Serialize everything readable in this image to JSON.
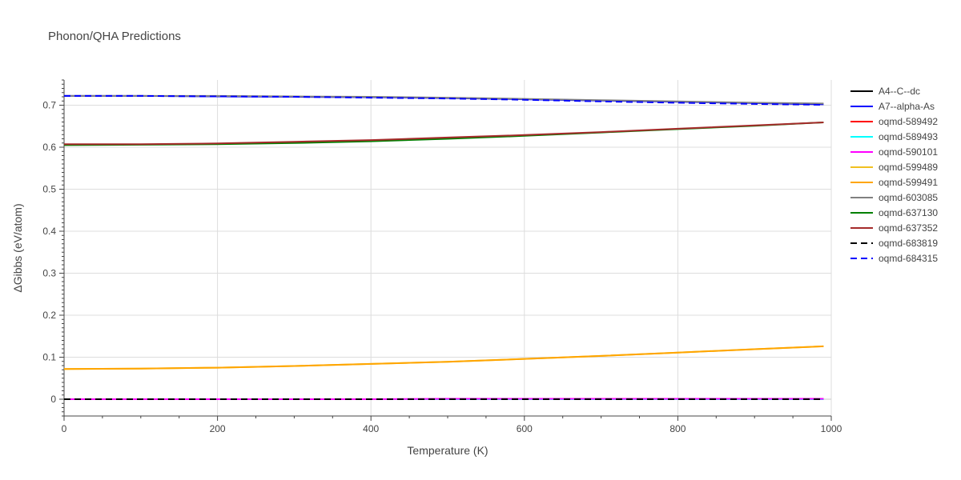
{
  "chart_data": {
    "type": "line",
    "title": "Phonon/QHA Predictions",
    "xlabel": "Temperature (K)",
    "ylabel": "ΔGibbs (eV/atom)",
    "xlim": [
      0,
      1000
    ],
    "ylim": [
      -0.04,
      0.76
    ],
    "xticks": [
      0,
      200,
      400,
      600,
      800,
      1000
    ],
    "yticks": [
      0,
      0.1,
      0.2,
      0.3,
      0.4,
      0.5,
      0.6,
      0.7
    ],
    "ytick_labels": [
      "0",
      "0.1",
      "0.2",
      "0.3",
      "0.4",
      "0.5",
      "0.6",
      "0.7"
    ],
    "grid": true,
    "legend_position": "right",
    "x": [
      0,
      100,
      200,
      300,
      400,
      500,
      600,
      700,
      800,
      900,
      990
    ],
    "series": [
      {
        "name": "A4--C--dc",
        "color": "#000000",
        "dash": "solid",
        "values": [
          0.0,
          0.0,
          0.0,
          0.0,
          0.0,
          0.0,
          0.0,
          0.0,
          0.0,
          0.0,
          0.0
        ]
      },
      {
        "name": "A7--alpha-As",
        "color": "#0000ff",
        "dash": "solid",
        "values": [
          0.722,
          0.722,
          0.721,
          0.72,
          0.719,
          0.717,
          0.714,
          0.711,
          0.708,
          0.705,
          0.702
        ]
      },
      {
        "name": "oqmd-589492",
        "color": "#ff0000",
        "dash": "solid",
        "values": [
          0.0,
          0.0,
          0.0,
          0.0,
          0.0,
          0.0,
          0.001,
          0.001,
          0.001,
          0.001,
          0.001
        ]
      },
      {
        "name": "oqmd-589493",
        "color": "#00ffff",
        "dash": "solid",
        "values": [
          0.0,
          0.0,
          0.0,
          0.0,
          0.0,
          0.0,
          0.0,
          0.0,
          0.0,
          0.0,
          0.0
        ]
      },
      {
        "name": "oqmd-590101",
        "color": "#ff00ff",
        "dash": "solid",
        "values": [
          0.0,
          0.0,
          0.0,
          0.0,
          0.0,
          0.001,
          0.001,
          0.001,
          0.001,
          0.001,
          0.001
        ]
      },
      {
        "name": "oqmd-599489",
        "color": "#f0c020",
        "dash": "solid",
        "values": [
          0.072,
          0.073,
          0.075,
          0.079,
          0.084,
          0.089,
          0.096,
          0.103,
          0.111,
          0.119,
          0.126
        ]
      },
      {
        "name": "oqmd-599491",
        "color": "#ffa500",
        "dash": "solid",
        "values": [
          0.072,
          0.073,
          0.075,
          0.079,
          0.084,
          0.089,
          0.096,
          0.103,
          0.111,
          0.119,
          0.126
        ]
      },
      {
        "name": "oqmd-603085",
        "color": "#808080",
        "dash": "solid",
        "values": [
          0.722,
          0.722,
          0.722,
          0.721,
          0.72,
          0.718,
          0.715,
          0.712,
          0.709,
          0.706,
          0.704
        ]
      },
      {
        "name": "oqmd-637130",
        "color": "#008000",
        "dash": "solid",
        "values": [
          0.605,
          0.606,
          0.607,
          0.61,
          0.614,
          0.62,
          0.627,
          0.635,
          0.643,
          0.651,
          0.659
        ]
      },
      {
        "name": "oqmd-637352",
        "color": "#a52a2a",
        "dash": "solid",
        "values": [
          0.607,
          0.607,
          0.609,
          0.613,
          0.617,
          0.623,
          0.629,
          0.636,
          0.644,
          0.652,
          0.659
        ]
      },
      {
        "name": "oqmd-683819",
        "color": "#000000",
        "dash": "dash",
        "values": [
          0.0,
          0.0,
          0.0,
          0.0,
          0.0,
          0.0,
          0.0,
          0.0,
          0.0,
          0.0,
          0.0
        ]
      },
      {
        "name": "oqmd-684315",
        "color": "#0000ff",
        "dash": "dash",
        "values": [
          0.722,
          0.722,
          0.721,
          0.72,
          0.718,
          0.716,
          0.713,
          0.709,
          0.706,
          0.703,
          0.701
        ]
      }
    ]
  }
}
